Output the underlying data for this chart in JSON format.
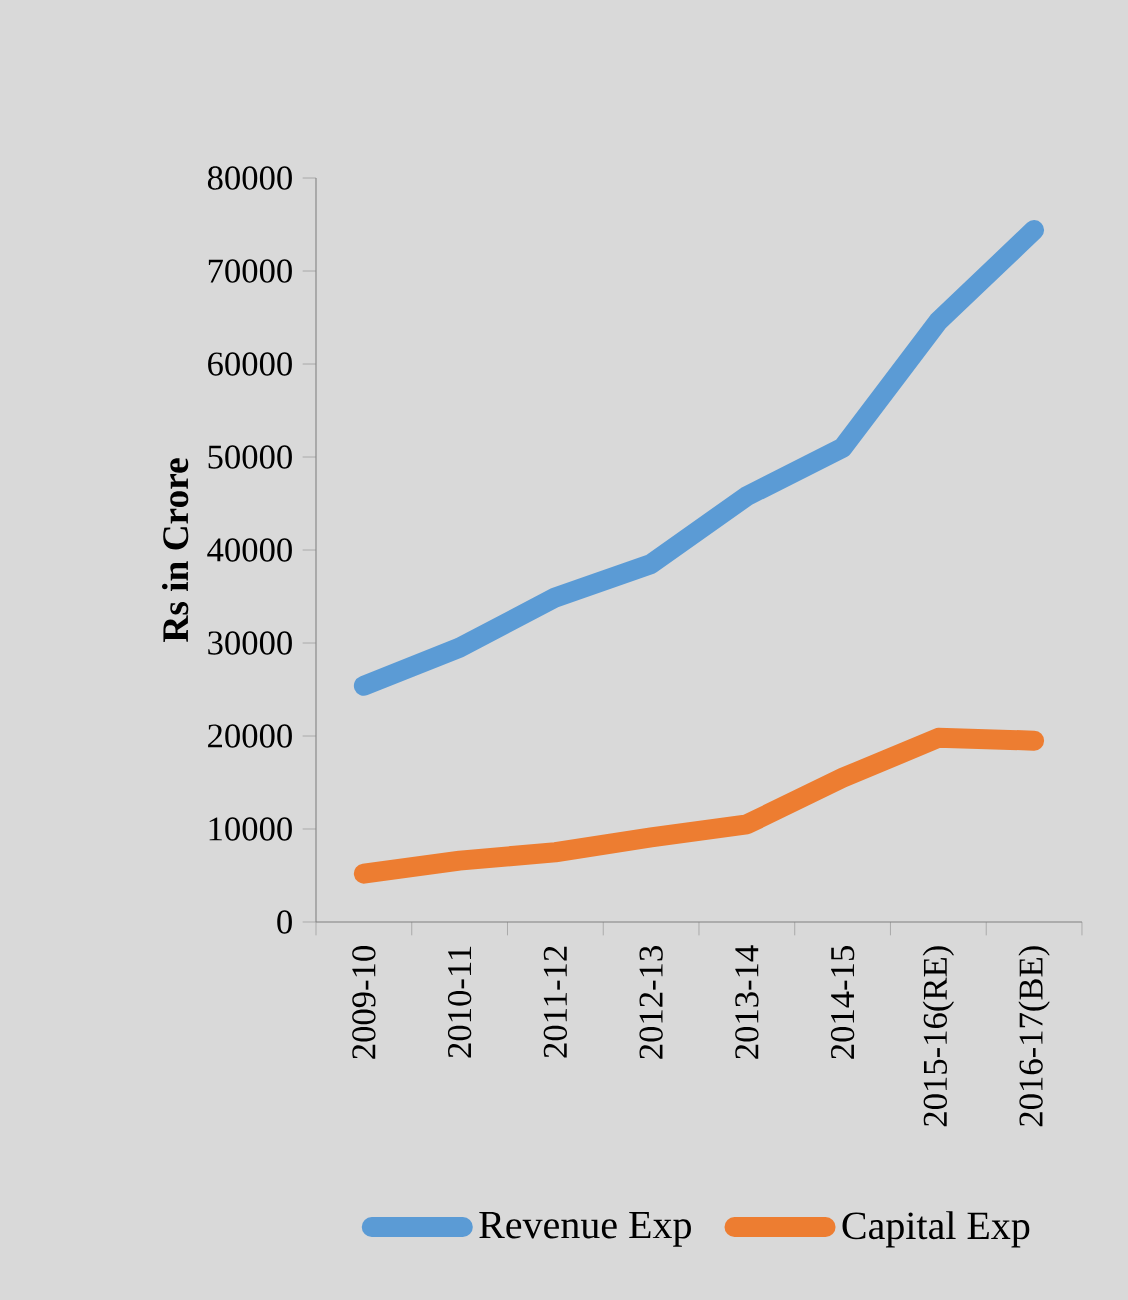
{
  "chart_data": {
    "type": "line",
    "ylabel": "Rs in Crore",
    "categories": [
      "2009-10",
      "2010-11",
      "2011-12",
      "2012-13",
      "2013-14",
      "2014-15",
      "2015-16(RE)",
      "2016-17(BE)"
    ],
    "series": [
      {
        "name": "Revenue Exp",
        "color": "#5b9bd5",
        "values": [
          25400,
          29500,
          34900,
          38500,
          45800,
          51000,
          64600,
          74400
        ]
      },
      {
        "name": "Capital Exp",
        "color": "#ed7d31",
        "values": [
          5200,
          6600,
          7500,
          9100,
          10500,
          15500,
          19800,
          19500
        ]
      }
    ],
    "ylim": [
      0,
      80000
    ],
    "yticks": [
      0,
      10000,
      20000,
      30000,
      40000,
      50000,
      60000,
      70000,
      80000
    ],
    "legend": "bottom",
    "grid": false
  }
}
